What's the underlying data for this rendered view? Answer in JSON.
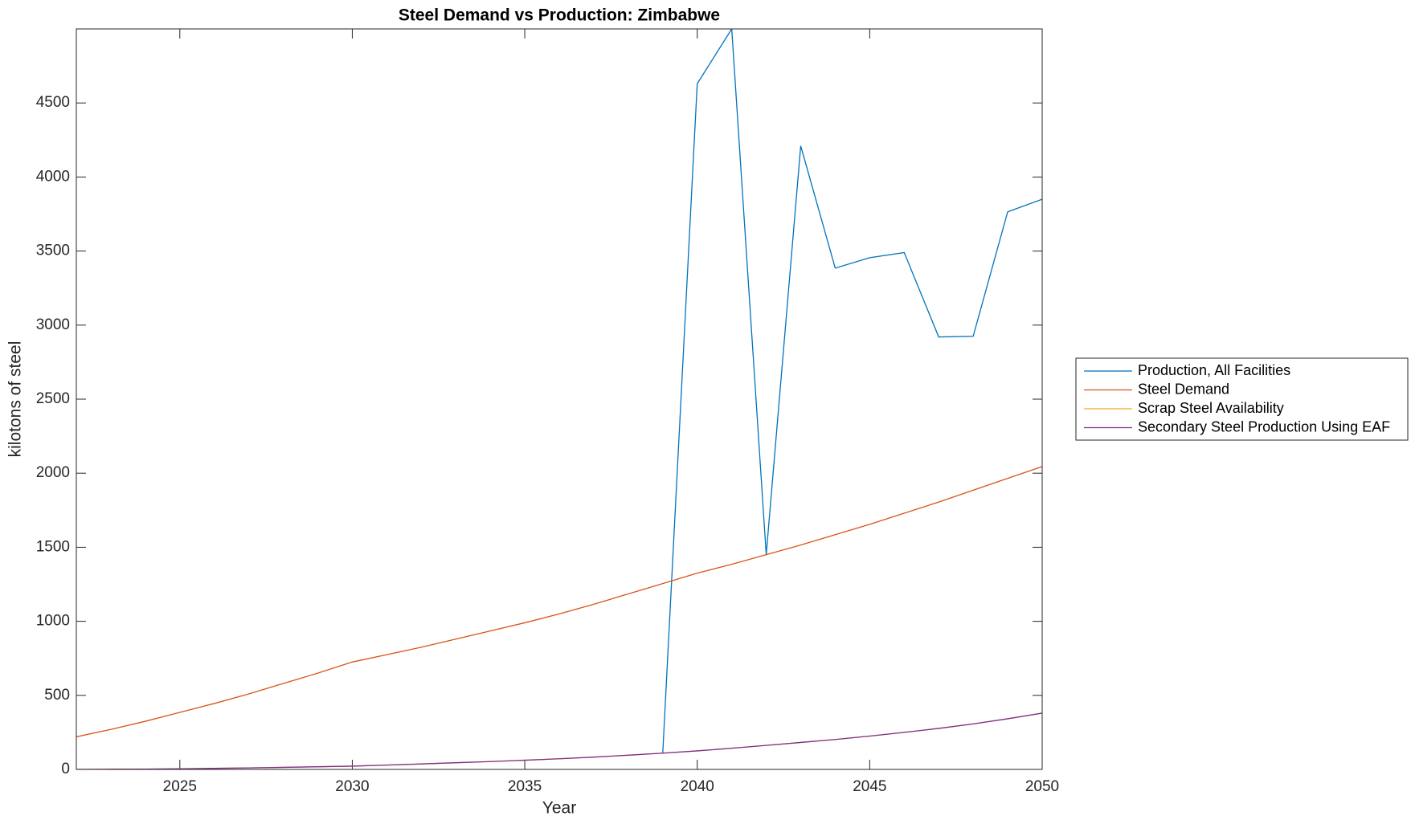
{
  "chart_data": {
    "type": "line",
    "title": "Steel Demand vs Production: Zimbabwe",
    "x_label": "Year",
    "y_label": "kilotons of steel",
    "x": [
      2022,
      2023,
      2024,
      2025,
      2026,
      2027,
      2028,
      2029,
      2030,
      2031,
      2032,
      2033,
      2034,
      2035,
      2036,
      2037,
      2038,
      2039,
      2040,
      2041,
      2042,
      2043,
      2044,
      2045,
      2046,
      2047,
      2048,
      2049,
      2050
    ],
    "series": [
      {
        "name": "Production, All Facilities",
        "color": "#0072bd",
        "values": [
          null,
          null,
          null,
          null,
          null,
          null,
          null,
          null,
          null,
          null,
          null,
          null,
          null,
          null,
          null,
          null,
          null,
          110,
          4630,
          5000,
          1450,
          4210,
          3385,
          3455,
          3490,
          2920,
          2925,
          3765,
          3850
        ]
      },
      {
        "name": "Steel Demand",
        "color": "#d95319",
        "values": [
          220,
          270,
          325,
          385,
          445,
          510,
          580,
          650,
          725,
          775,
          825,
          880,
          935,
          990,
          1050,
          1115,
          1185,
          1255,
          1325,
          1385,
          1450,
          1515,
          1585,
          1655,
          1730,
          1805,
          1885,
          1965,
          2045
        ]
      },
      {
        "name": "Scrap Steel Availability",
        "color": "#edb120",
        "values": [
          0,
          1,
          2,
          4,
          7,
          10,
          14,
          18,
          22,
          29,
          37,
          45,
          53,
          62,
          72,
          83,
          96,
          110,
          125,
          143,
          162,
          182,
          202,
          225,
          250,
          277,
          307,
          342,
          380
        ]
      },
      {
        "name": "Secondary Steel Production Using EAF",
        "color": "#7e2f8e",
        "values": [
          0,
          1,
          2,
          4,
          7,
          10,
          14,
          18,
          22,
          29,
          37,
          45,
          53,
          62,
          72,
          83,
          96,
          110,
          125,
          143,
          162,
          182,
          202,
          225,
          250,
          277,
          307,
          342,
          380
        ]
      }
    ],
    "xlim": [
      2022,
      2050
    ],
    "xticks": [
      2025,
      2030,
      2035,
      2040,
      2045,
      2050
    ],
    "ylim": [
      0,
      5000
    ],
    "yticks": [
      0,
      500,
      1000,
      1500,
      2000,
      2500,
      3000,
      3500,
      4000,
      4500
    ],
    "legend": "right"
  }
}
